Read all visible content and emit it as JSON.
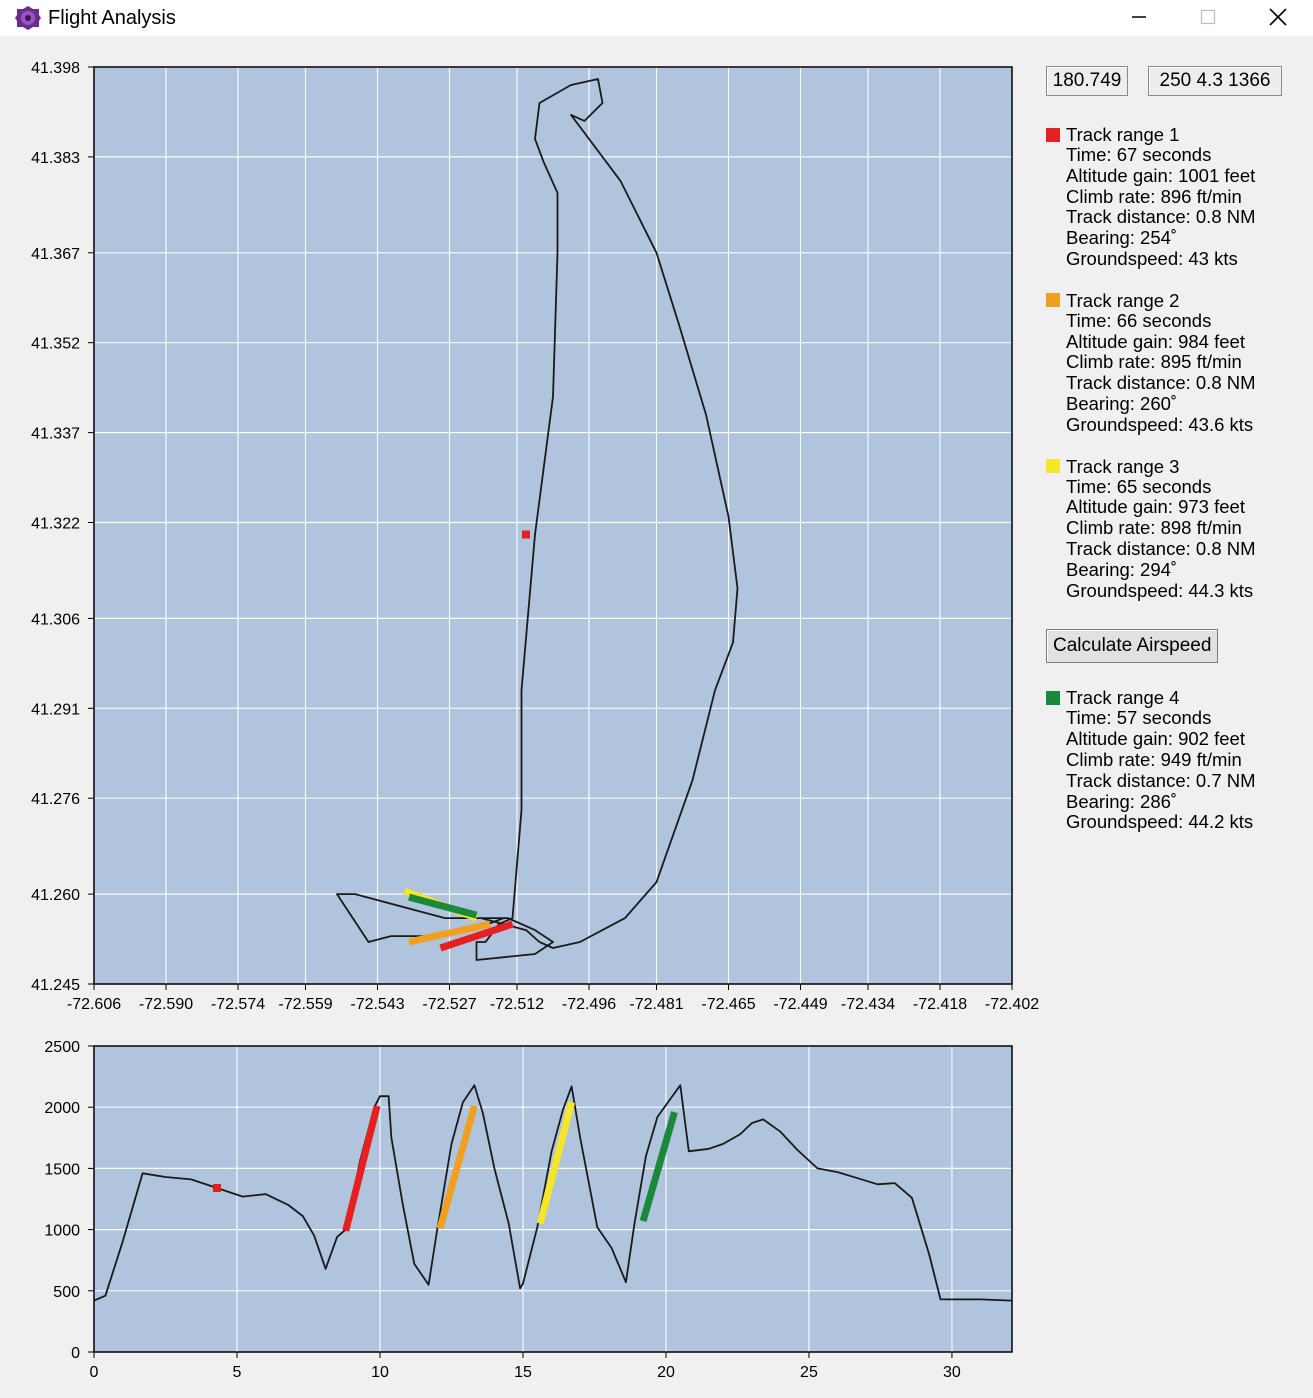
{
  "window": {
    "title": "Flight Analysis",
    "app_icon": "purple-gear-icon",
    "controls": [
      "minimize-icon",
      "maximize-icon",
      "close-icon"
    ]
  },
  "readouts": {
    "heading": "180.749",
    "position": "250 4.3  1366"
  },
  "panel": {
    "ranges": [
      {
        "title": "Track range 1",
        "color": "#e62020",
        "lines": [
          "Time: 67 seconds",
          "Altitude gain: 1001 feet",
          "Climb rate: 896 ft/min",
          "Track distance: 0.8 NM",
          "Bearing: 254˚",
          "Groundspeed: 43 kts"
        ]
      },
      {
        "title": "Track range 2",
        "color": "#f0a020",
        "lines": [
          "Time: 66 seconds",
          "Altitude gain: 984 feet",
          "Climb rate: 895 ft/min",
          "Track distance: 0.8 NM",
          "Bearing: 260˚",
          "Groundspeed: 43.6 kts"
        ]
      },
      {
        "title": "Track range 3",
        "color": "#f5e628",
        "lines": [
          "Time: 65 seconds",
          "Altitude gain: 973 feet",
          "Climb rate: 898 ft/min",
          "Track distance: 0.8 NM",
          "Bearing: 294˚",
          "Groundspeed: 44.3 kts"
        ]
      },
      {
        "title": "Track range 4",
        "color": "#1a8a3a",
        "lines": [
          "Time: 57 seconds",
          "Altitude gain: 902 feet",
          "Climb rate: 949 ft/min",
          "Track distance: 0.7 NM",
          "Bearing: 286˚",
          "Groundspeed: 44.2 kts"
        ]
      }
    ],
    "calc_button": "Calculate Airspeed"
  },
  "chart_data": [
    {
      "type": "line",
      "title": "",
      "xlabel": "",
      "ylabel": "",
      "xlim": [
        -72.606,
        -72.402
      ],
      "ylim": [
        41.245,
        41.398
      ],
      "x_ticks": [
        "-72.606",
        "-72.590",
        "-72.574",
        "-72.559",
        "-72.543",
        "-72.527",
        "-72.512",
        "-72.496",
        "-72.481",
        "-72.465",
        "-72.449",
        "-72.434",
        "-72.418",
        "-72.402"
      ],
      "y_ticks": [
        "41.398",
        "41.383",
        "41.367",
        "41.352",
        "41.337",
        "41.322",
        "41.306",
        "41.291",
        "41.276",
        "41.260",
        "41.245"
      ],
      "grid": true,
      "background": "#b0c4de",
      "track": {
        "x": [
          -72.515,
          -72.522,
          -72.531,
          -72.54,
          -72.545,
          -72.552,
          -72.548,
          -72.538,
          -72.528,
          -72.514,
          -72.508,
          -72.504,
          -72.508,
          -72.521,
          -72.521,
          -72.519,
          -72.516,
          -72.513,
          -72.511,
          -72.511,
          -72.508,
          -72.504,
          -72.503,
          -72.503,
          -72.506,
          -72.508,
          -72.507,
          -72.5,
          -72.494,
          -72.493,
          -72.497,
          -72.5,
          -72.489,
          -72.481,
          -72.476,
          -72.47,
          -72.465,
          -72.463,
          -72.464,
          -72.468,
          -72.473,
          -72.481,
          -72.488,
          -72.498,
          -72.504,
          -72.507,
          -72.51,
          -72.515,
          -72.52
        ],
        "y": [
          41.256,
          41.254,
          41.253,
          41.253,
          41.252,
          41.26,
          41.26,
          41.258,
          41.256,
          41.256,
          41.254,
          41.252,
          41.25,
          41.249,
          41.252,
          41.252,
          41.255,
          41.256,
          41.274,
          41.294,
          41.32,
          41.343,
          41.367,
          41.377,
          41.382,
          41.386,
          41.392,
          41.395,
          41.396,
          41.392,
          41.389,
          41.39,
          41.379,
          41.367,
          41.355,
          41.34,
          41.323,
          41.311,
          41.302,
          41.294,
          41.279,
          41.262,
          41.256,
          41.252,
          41.251,
          41.252,
          41.254,
          41.255,
          41.256
        ]
      },
      "marker": {
        "x": -72.51,
        "y": 41.32,
        "color": "#e62020"
      },
      "segments": [
        {
          "name": "Track range 1",
          "color": "#e62020",
          "x": [
            -72.529,
            -72.513
          ],
          "y": [
            41.251,
            41.255
          ]
        },
        {
          "name": "Track range 2",
          "color": "#f0a020",
          "x": [
            -72.536,
            -72.518
          ],
          "y": [
            41.252,
            41.255
          ]
        },
        {
          "name": "Track range 3",
          "color": "#f5e628",
          "x": [
            -72.537,
            -72.521
          ],
          "y": [
            41.2605,
            41.256
          ]
        },
        {
          "name": "Track range 4",
          "color": "#1a8a3a",
          "x": [
            -72.536,
            -72.521
          ],
          "y": [
            41.2595,
            41.2565
          ]
        }
      ]
    },
    {
      "type": "line",
      "title": "",
      "xlabel": "",
      "ylabel": "",
      "xlim": [
        0,
        32.1
      ],
      "ylim": [
        0,
        2500
      ],
      "x_ticks": [
        0,
        5,
        10,
        15,
        20,
        25,
        30
      ],
      "y_ticks": [
        0,
        500,
        1000,
        1500,
        2000,
        2500
      ],
      "grid": true,
      "background": "#b0c4de",
      "series": [
        {
          "x": [
            0,
            0.4,
            1.0,
            1.7,
            2.5,
            3.4,
            4.3,
            5.2,
            6.0,
            6.8,
            7.3,
            7.7,
            8.1,
            8.5,
            8.8,
            9.3,
            9.8,
            10.0,
            10.3,
            10.4,
            10.8,
            11.2,
            11.7,
            12.0,
            12.5,
            12.9,
            13.3,
            13.6,
            14.0,
            14.5,
            14.9,
            15.0,
            15.5,
            16.0,
            16.4,
            16.7,
            17.0,
            17.6,
            18.1,
            18.6,
            18.9,
            19.3,
            19.7,
            20.1,
            20.5,
            20.8,
            21.5,
            22.0,
            22.6,
            23.0,
            23.4,
            24.0,
            24.6,
            25.3,
            26.0,
            26.7,
            27.4,
            28.0,
            28.6,
            29.2,
            29.6,
            30.0,
            31.0,
            32.1
          ],
          "y": [
            420,
            460,
            900,
            1460,
            1430,
            1410,
            1340,
            1270,
            1290,
            1200,
            1110,
            950,
            680,
            940,
            1000,
            1560,
            2000,
            2090,
            2090,
            1750,
            1200,
            720,
            550,
            1000,
            1700,
            2040,
            2180,
            1950,
            1500,
            1050,
            520,
            560,
            1020,
            1640,
            1980,
            2170,
            1750,
            1020,
            850,
            570,
            1050,
            1600,
            1920,
            2050,
            2180,
            1640,
            1660,
            1700,
            1780,
            1870,
            1900,
            1800,
            1650,
            1500,
            1470,
            1420,
            1370,
            1380,
            1260,
            800,
            430,
            430,
            430,
            420
          ]
        },
        {
          "name": "Track range 1",
          "color": "#e62020",
          "x": [
            8.8,
            9.9
          ],
          "y": [
            990,
            2010
          ]
        },
        {
          "name": "Track range 2",
          "color": "#f0a020",
          "x": [
            12.1,
            13.3
          ],
          "y": [
            1010,
            2010
          ]
        },
        {
          "name": "Track range 3",
          "color": "#f5e628",
          "x": [
            15.6,
            16.7
          ],
          "y": [
            1050,
            2040
          ]
        },
        {
          "name": "Track range 4",
          "color": "#1a8a3a",
          "x": [
            19.2,
            20.3
          ],
          "y": [
            1070,
            1960
          ]
        }
      ],
      "marker": {
        "x": 4.3,
        "y": 1340,
        "color": "#e62020"
      }
    }
  ]
}
